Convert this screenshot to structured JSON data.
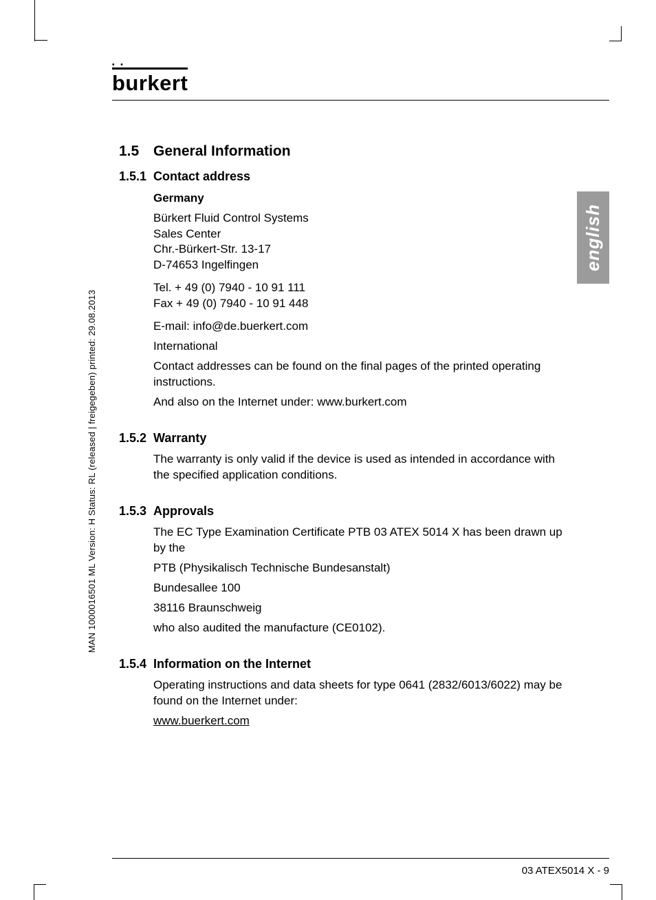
{
  "logo": {
    "text": "burkert",
    "dots": "• •"
  },
  "side_meta": "MAN  1000016501  ML   Version: H   Status: RL (released | freigegeben)   printed: 29.08.2013",
  "lang_tab": "english",
  "section": {
    "num": "1.5",
    "title": "General Information"
  },
  "sub1": {
    "num": "1.5.1",
    "title": "Contact address",
    "country": "Germany",
    "addr1": "Bürkert Fluid Control Systems",
    "addr2": "Sales Center",
    "addr3": "Chr.-Bürkert-Str. 13-17",
    "addr4": "D-74653 Ingelfingen",
    "tel": "Tel. + 49 (0) 7940 - 10 91 111",
    "fax": "Fax + 49 (0) 7940 - 10 91 448",
    "email": "E-mail: info@de.buerkert.com",
    "intl": "International",
    "intl_text": "Contact addresses can be found on the final pages of the printed operating instructions.",
    "internet": "And also on the Internet under: www.burkert.com"
  },
  "sub2": {
    "num": "1.5.2",
    "title": "Warranty",
    "text": "The warranty is only valid if the device is used as intended in accordance with the specified application conditions."
  },
  "sub3": {
    "num": "1.5.3",
    "title": "Approvals",
    "p1": "The EC Type Examination Certificate PTB 03 ATEX 5014 X has been drawn up by the",
    "p2": "PTB (Physikalisch Technische Bundesanstalt)",
    "p3": "Bundesallee 100",
    "p4": "38116 Braunschweig",
    "p5": "who also audited the manufacture (CE0102)."
  },
  "sub4": {
    "num": "1.5.4",
    "title": "Information on the Internet",
    "p1": "Operating instructions and data sheets for  type 0641 (2832/6013/6022) may be found on the Internet under:",
    "link": "www.buerkert.com"
  },
  "footer": "03 ATEX5014 X  -  9",
  "colors": {
    "tab_bg": "#9b9b9b",
    "tab_fg": "#ffffff",
    "text": "#000000"
  }
}
